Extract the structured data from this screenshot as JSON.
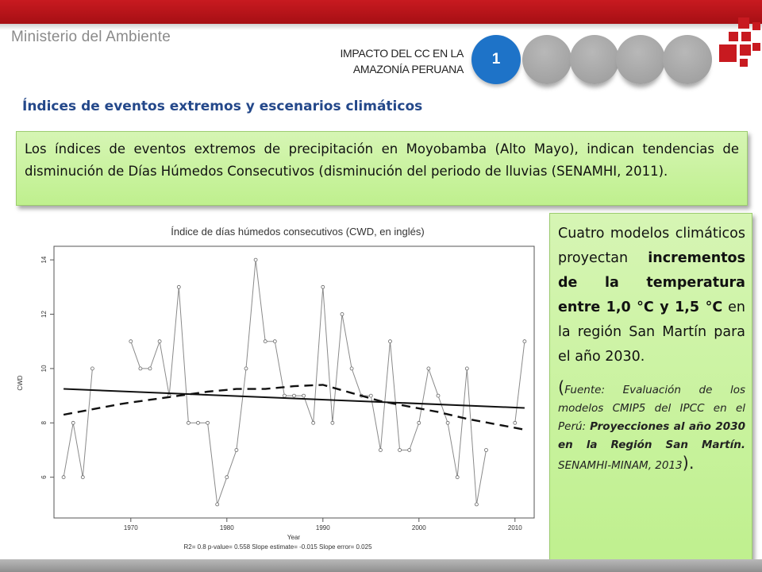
{
  "header": {
    "ministry": "Ministerio del Ambiente",
    "title_line1": "IMPACTO DEL CC EN LA",
    "title_line2": "AMAZONÍA PERUANA",
    "active_step_label": "1",
    "steps_total": 5,
    "active_color": "#1e73c8",
    "inactive_color": "#a6a6a6",
    "brand_color": "#c81a20",
    "logo_icon": "minam-logo-icon"
  },
  "section_title": "Índices de eventos extremos y escenarios climáticos",
  "intro_text": "Los índices de eventos extremos de precipitación en Moyobamba (Alto Mayo), indican tendencias de disminución de  Días Húmedos Consecutivos (disminución del periodo de lluvias (SENAMHI, 2011).",
  "chart_caption": "Índice de días húmedos consecutivos (CWD, en inglés)",
  "chart_data": {
    "type": "line",
    "title": "",
    "xlabel": "Year",
    "ylabel": "CWD",
    "xlim": [
      1962,
      2012
    ],
    "ylim": [
      4.5,
      14.5
    ],
    "xticks": [
      1970,
      1980,
      1990,
      2000,
      2010
    ],
    "yticks": [
      6,
      8,
      10,
      12,
      14
    ],
    "grid": false,
    "footer": "R2= 0.8  p-value= 0.558  Slope estimate= -0.015  Slope error= 0.025",
    "series": [
      {
        "style": "solid-thin-with-markers",
        "x": [
          1963,
          1964,
          1965,
          1966,
          1967,
          1968,
          1969,
          1970,
          1971,
          1972,
          1973,
          1974,
          1975,
          1976,
          1977,
          1978,
          1979,
          1980,
          1981,
          1982,
          1983,
          1984,
          1985,
          1986,
          1987,
          1988,
          1989,
          1990,
          1991,
          1992,
          1993,
          1994,
          1995,
          1996,
          1997,
          1998,
          1999,
          2000,
          2001,
          2002,
          2003,
          2004,
          2005,
          2006,
          2007,
          2008,
          2009,
          2010,
          2011
        ],
        "y": [
          6,
          8,
          6,
          10,
          null,
          null,
          null,
          11,
          10,
          10,
          11,
          9,
          13,
          8,
          8,
          8,
          5,
          6,
          7,
          10,
          14,
          11,
          11,
          9,
          9,
          9,
          8,
          13,
          8,
          12,
          10,
          9,
          9,
          7,
          11,
          7,
          7,
          8,
          10,
          9,
          8,
          6,
          10,
          5,
          7,
          null,
          null,
          8,
          11
        ]
      },
      {
        "style": "solid-thick",
        "x": [
          1963,
          2011
        ],
        "y": [
          9.25,
          8.55
        ]
      },
      {
        "style": "dashed-thick",
        "x": [
          1963,
          1966,
          1969,
          1972,
          1975,
          1978,
          1981,
          1984,
          1987,
          1990,
          1993,
          1996,
          1999,
          2002,
          2005,
          2008,
          2011
        ],
        "y": [
          8.3,
          8.5,
          8.7,
          8.85,
          9.0,
          9.15,
          9.25,
          9.25,
          9.35,
          9.4,
          9.1,
          8.8,
          8.6,
          8.4,
          8.15,
          7.95,
          7.75
        ]
      }
    ]
  },
  "right_box": {
    "p1": "Cuatro modelos climáticos proyectan ",
    "p1_bold": "incrementos de la temperatura entre 1,0 °C y 1,5 °C",
    "p1_end": " en la región San Martín para el año 2030.",
    "open_paren": "(",
    "source_a": "Fuente: Evaluación de los modelos CMIP5 del IPCC en el Perú: ",
    "source_bold": "Proyecciones al año 2030 en la Región San Martín.",
    "source_b": " SENAMHI-MINAM, 2013",
    "close_paren": ")."
  }
}
